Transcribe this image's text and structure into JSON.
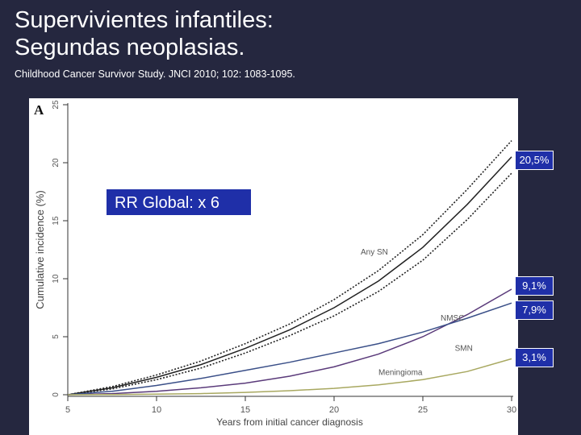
{
  "slide": {
    "title_line1": "Supervivientes infantiles:",
    "title_line2": "Segundas neoplasias.",
    "citation": "Childhood Cancer Survivor Study. JNCI 2010; 102: 1083-1095."
  },
  "callouts": {
    "rr_global": "RR Global: x 6",
    "any_sn_value": "20,5%",
    "nmsc_value": "9,1%",
    "smn_value": "7,9%",
    "meningioma_value": "3,1%"
  },
  "colors": {
    "background": "#25273f",
    "callout_fill": "#1f2fa8",
    "any_sn": "#222222",
    "nmsc": "#5a3a7a",
    "smn": "#3a4f88",
    "meningioma": "#a8a860"
  },
  "chart_data": {
    "type": "line",
    "panel_label": "A",
    "xlabel": "Years from initial cancer diagnosis",
    "ylabel": "Cumulative incidence (%)",
    "xlim": [
      5,
      30
    ],
    "ylim": [
      0,
      25
    ],
    "xticks": [
      5,
      10,
      15,
      20,
      25,
      30
    ],
    "yticks": [
      0,
      5,
      10,
      15,
      20,
      25
    ],
    "grid": false,
    "series": [
      {
        "name": "Any SN",
        "style": "solid",
        "color_key": "any_sn",
        "x": [
          5,
          7.5,
          10,
          12.5,
          15,
          17.5,
          20,
          22.5,
          25,
          27.5,
          30
        ],
        "y": [
          0,
          0.6,
          1.5,
          2.6,
          4.0,
          5.6,
          7.5,
          9.8,
          12.7,
          16.4,
          20.5
        ]
      },
      {
        "name": "",
        "style": "dotted-upper",
        "color_key": "any_sn",
        "x": [
          5,
          7.5,
          10,
          12.5,
          15,
          17.5,
          20,
          22.5,
          25,
          27.5,
          30
        ],
        "y": [
          0,
          0.7,
          1.7,
          2.9,
          4.4,
          6.1,
          8.2,
          10.7,
          13.8,
          17.7,
          21.9
        ]
      },
      {
        "name": "",
        "style": "dotted-lower",
        "color_key": "any_sn",
        "x": [
          5,
          7.5,
          10,
          12.5,
          15,
          17.5,
          20,
          22.5,
          25,
          27.5,
          30
        ],
        "y": [
          0,
          0.5,
          1.3,
          2.3,
          3.6,
          5.1,
          6.8,
          8.9,
          11.6,
          15.1,
          19.1
        ]
      },
      {
        "name": "NMSC",
        "style": "solid",
        "color_key": "nmsc",
        "x": [
          5,
          7.5,
          10,
          12.5,
          15,
          17.5,
          20,
          22.5,
          25,
          27.5,
          30
        ],
        "y": [
          0,
          0.1,
          0.3,
          0.6,
          1.0,
          1.6,
          2.4,
          3.5,
          5.0,
          6.9,
          9.1
        ]
      },
      {
        "name": "SMN",
        "style": "solid",
        "color_key": "smn",
        "x": [
          5,
          7.5,
          10,
          12.5,
          15,
          17.5,
          20,
          22.5,
          25,
          27.5,
          30
        ],
        "y": [
          0,
          0.3,
          0.8,
          1.4,
          2.1,
          2.8,
          3.6,
          4.4,
          5.4,
          6.6,
          7.9
        ]
      },
      {
        "name": "Meningioma",
        "style": "solid",
        "color_key": "meningioma",
        "x": [
          5,
          7.5,
          10,
          12.5,
          15,
          17.5,
          20,
          22.5,
          25,
          27.5,
          30
        ],
        "y": [
          0,
          0.02,
          0.05,
          0.1,
          0.2,
          0.35,
          0.55,
          0.85,
          1.3,
          2.0,
          3.1
        ]
      }
    ]
  }
}
